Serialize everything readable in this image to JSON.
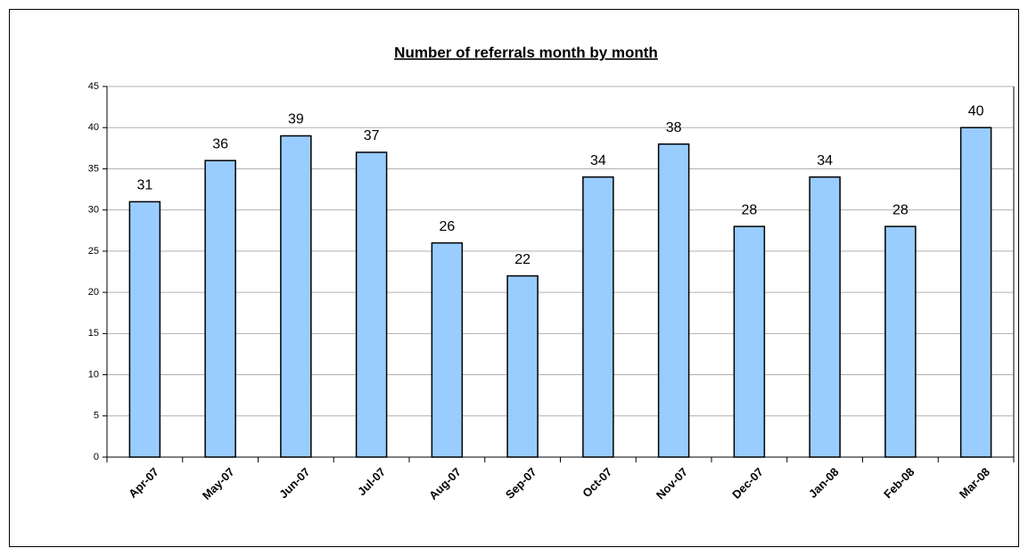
{
  "chart_data": {
    "type": "bar",
    "title": "Number of referrals month by month",
    "categories": [
      "Apr-07",
      "May-07",
      "Jun-07",
      "Jul-07",
      "Aug-07",
      "Sep-07",
      "Oct-07",
      "Nov-07",
      "Dec-07",
      "Jan-08",
      "Feb-08",
      "Mar-08"
    ],
    "values": [
      31,
      36,
      39,
      37,
      26,
      22,
      34,
      38,
      28,
      34,
      28,
      40
    ],
    "color": "#99ccff",
    "ylim": [
      0,
      45
    ],
    "yticks": [
      0,
      5,
      10,
      15,
      20,
      25,
      30,
      35,
      40,
      45
    ],
    "grid": true
  }
}
